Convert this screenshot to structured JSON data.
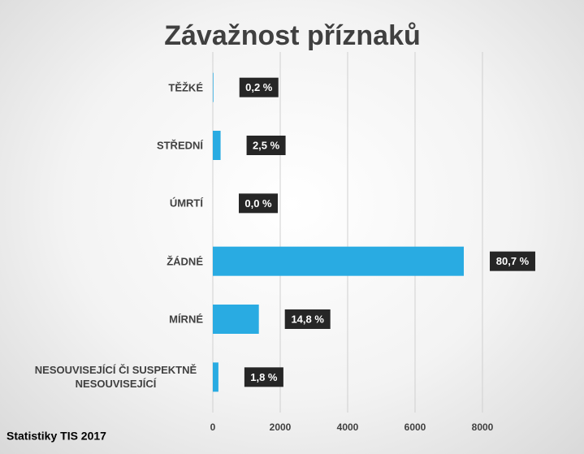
{
  "chart_data": {
    "type": "bar",
    "orientation": "horizontal",
    "title": "Závažnost příznaků",
    "categories": [
      "TĚŽKÉ",
      "STŘEDNÍ",
      "ÚMRTÍ",
      "ŽÁDNÉ",
      "MÍRNÉ",
      "NESOUVISEJÍCÍ ČI SUSPEKTNĚ NESOUVISEJÍCÍ"
    ],
    "values": [
      18,
      231,
      0,
      7446,
      1366,
      166
    ],
    "bar_labels": [
      "0,2 %",
      "2,5 %",
      "0,0 %",
      "80,7 %",
      "14,8 %",
      "1,8 %"
    ],
    "color": "#29abe2",
    "xlim": [
      0,
      8000
    ],
    "xticks": [
      0,
      2000,
      4000,
      6000,
      8000
    ],
    "grid": true,
    "source": "Statistiky TIS 2017"
  }
}
